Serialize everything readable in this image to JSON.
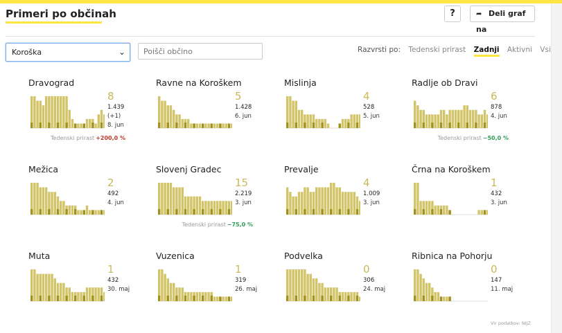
{
  "header": {
    "title": "Primeri po občinah",
    "help_label": "?",
    "share_label": "Deli graf na"
  },
  "filters": {
    "region_value": "Koroška",
    "search_placeholder": "Poišči občino"
  },
  "sort": {
    "label": "Razvrsti po:",
    "options": [
      "Tedenski prirast",
      "Zadnji",
      "Aktivni",
      "Vsi"
    ],
    "active": "Zadnji"
  },
  "growth_label": "Tedenski prirast",
  "municipalities": [
    {
      "name": "Dravograd",
      "last": "8",
      "total": "1.439",
      "delta": "(+1)",
      "date": "8. jun",
      "growth": "+200,0 %",
      "growth_dir": "up",
      "bars": [
        7,
        7,
        6,
        6,
        5,
        7,
        7,
        7,
        7,
        7,
        7,
        7,
        7,
        4,
        2,
        1,
        1,
        1,
        1,
        2,
        2,
        2,
        1,
        3,
        4,
        3,
        4
      ]
    },
    {
      "name": "Ravne na Koroškem",
      "last": "5",
      "total": "1.428",
      "date": "6. jun",
      "bars": [
        7,
        6,
        6,
        5,
        5,
        4,
        3,
        3,
        2,
        2,
        2,
        1,
        1,
        1,
        1,
        1,
        1,
        1,
        1,
        1,
        1,
        1,
        1,
        1,
        1,
        1,
        1
      ]
    },
    {
      "name": "Mislinja",
      "last": "4",
      "total": "528",
      "date": "5. jun",
      "bars": [
        7,
        7,
        6,
        6,
        4,
        4,
        3,
        3,
        3,
        3,
        2,
        2,
        2,
        2,
        1,
        0,
        0,
        0,
        1,
        2,
        2,
        2,
        3,
        3,
        3,
        3,
        3
      ]
    },
    {
      "name": "Radlje ob Dravi",
      "last": "6",
      "total": "878",
      "date": "4. jun",
      "growth": "−50,0 %",
      "growth_dir": "down",
      "bars": [
        6,
        5,
        4,
        4,
        3,
        3,
        3,
        3,
        3,
        4,
        4,
        3,
        4,
        4,
        4,
        4,
        4,
        5,
        5,
        4,
        4,
        4,
        3,
        3,
        4,
        3,
        3
      ]
    },
    {
      "name": "Mežica",
      "last": "2",
      "total": "492",
      "date": "4. jun",
      "bars": [
        7,
        7,
        7,
        6,
        6,
        6,
        5,
        5,
        5,
        4,
        3,
        3,
        2,
        2,
        2,
        2,
        1,
        1,
        1,
        2,
        1,
        1,
        1,
        1,
        1,
        1,
        1
      ]
    },
    {
      "name": "Slovenj Gradec",
      "last": "15",
      "total": "2.219",
      "date": "3. jun",
      "growth": "−75,0 %",
      "growth_dir": "down",
      "bars": [
        7,
        7,
        7,
        7,
        7,
        6,
        6,
        6,
        6,
        4,
        4,
        4,
        4,
        4,
        4,
        3,
        3,
        3,
        3,
        3,
        3,
        3,
        3,
        3,
        3,
        3,
        3
      ]
    },
    {
      "name": "Prevalje",
      "last": "4",
      "total": "1.009",
      "date": "3. jun",
      "bars": [
        6,
        5,
        4,
        4,
        5,
        5,
        6,
        6,
        5,
        5,
        6,
        6,
        6,
        6,
        6,
        7,
        7,
        6,
        6,
        5,
        5,
        5,
        5,
        5,
        4,
        3,
        3
      ]
    },
    {
      "name": "Črna na Koroškem",
      "last": "1",
      "total": "432",
      "date": "3. jun",
      "bars": [
        7,
        7,
        3,
        3,
        3,
        3,
        3,
        2,
        2,
        2,
        2,
        2,
        1,
        0,
        0,
        0,
        0,
        0,
        0,
        0,
        0,
        0,
        1,
        1,
        1,
        1,
        1
      ]
    },
    {
      "name": "Muta",
      "last": "1",
      "total": "432",
      "date": "30. maj",
      "bars": [
        7,
        7,
        6,
        6,
        6,
        6,
        6,
        6,
        5,
        4,
        4,
        4,
        3,
        3,
        2,
        2,
        2,
        2,
        2,
        3,
        3,
        3,
        3,
        3,
        3,
        2,
        0
      ]
    },
    {
      "name": "Vuzenica",
      "last": "1",
      "total": "319",
      "date": "26. maj",
      "bars": [
        7,
        7,
        6,
        5,
        4,
        4,
        3,
        3,
        3,
        2,
        2,
        2,
        2,
        2,
        2,
        2,
        2,
        2,
        2,
        1,
        1,
        1,
        1,
        1,
        1,
        1,
        1
      ]
    },
    {
      "name": "Podvelka",
      "last": "0",
      "total": "306",
      "date": "24. maj",
      "bars": [
        7,
        7,
        7,
        7,
        7,
        7,
        7,
        6,
        6,
        5,
        5,
        4,
        4,
        3,
        3,
        3,
        3,
        3,
        2,
        2,
        2,
        2,
        2,
        2,
        2,
        1,
        1
      ]
    },
    {
      "name": "Ribnica na Pohorju",
      "last": "0",
      "total": "147",
      "date": "11. maj",
      "bars": [
        7,
        7,
        6,
        5,
        4,
        4,
        3,
        2,
        2,
        1,
        1,
        1,
        1,
        0,
        0,
        0,
        0,
        0,
        0,
        0,
        0,
        0,
        0,
        0,
        0,
        0,
        0
      ]
    }
  ],
  "source": "Vir podatkov: NIJZ",
  "colors": {
    "bar": "#d2c468",
    "bar_dark": "#a2911c",
    "accent": "#fde543",
    "up": "#c0392b",
    "down": "#2e9e55"
  }
}
